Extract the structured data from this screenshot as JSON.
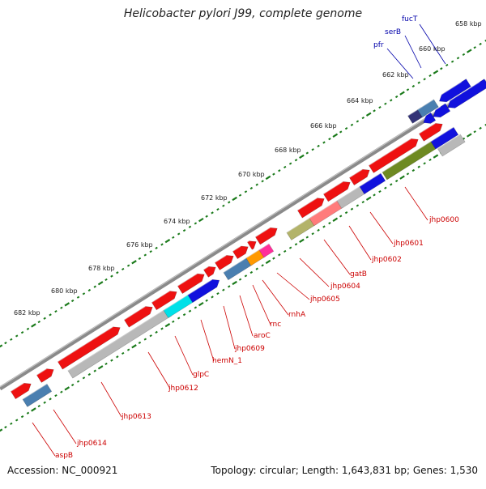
{
  "header": {
    "title": "Helicobacter pylori J99, complete genome"
  },
  "footer": {
    "accession": "Accession: NC_000921",
    "summary": "Topology: circular; Length: 1,643,831 bp; Genes: 1,530"
  },
  "colors": {
    "forward_gene": "#ee1111",
    "reverse_gene": "#1111dd",
    "backbone": "#888888",
    "tick_dots": "#1a7a1a",
    "label_red": "#cc0000",
    "label_blue": "#0000aa"
  },
  "scale": {
    "ticks": [
      {
        "label": "658 kbp"
      },
      {
        "label": "660 kbp"
      },
      {
        "label": "662 kbp"
      },
      {
        "label": "664 kbp"
      },
      {
        "label": "666 kbp"
      },
      {
        "label": "668 kbp"
      },
      {
        "label": "670 kbp"
      },
      {
        "label": "672 kbp"
      },
      {
        "label": "674 kbp"
      },
      {
        "label": "676 kbp"
      },
      {
        "label": "678 kbp"
      },
      {
        "label": "680 kbp"
      },
      {
        "label": "682 kbp"
      }
    ]
  },
  "genes": {
    "reverse_labels": [
      {
        "name": "fucT"
      },
      {
        "name": "serB"
      },
      {
        "name": "pfr"
      }
    ],
    "forward_labels": [
      {
        "name": "jhp0600"
      },
      {
        "name": "jhp0601"
      },
      {
        "name": "jhp0602"
      },
      {
        "name": "gatB"
      },
      {
        "name": "jhp0604"
      },
      {
        "name": "jhp0605"
      },
      {
        "name": "rnhA"
      },
      {
        "name": "rnc"
      },
      {
        "name": "aroC"
      },
      {
        "name": "jhp0609"
      },
      {
        "name": "hemN_1"
      },
      {
        "name": "glpC"
      },
      {
        "name": "jhp0612"
      },
      {
        "name": "jhp0613"
      },
      {
        "name": "jhp0614"
      },
      {
        "name": "aspB"
      }
    ]
  }
}
